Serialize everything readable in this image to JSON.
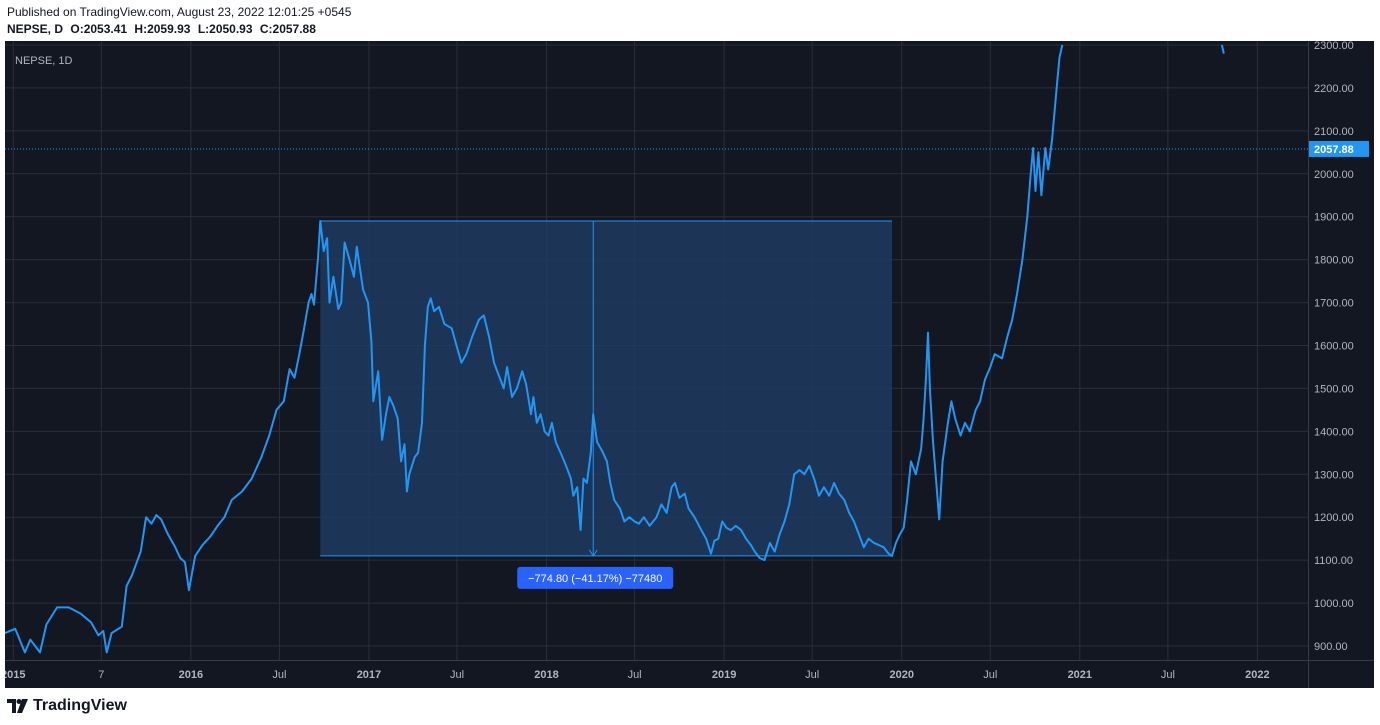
{
  "header": {
    "published": "Published on TradingView.com, August 23, 2022 12:01:25 +0545",
    "symbol": "NEPSE, D",
    "open": "O:2053.41",
    "high": "H:2059.93",
    "low": "L:2050.93",
    "close": "C:2057.88"
  },
  "footer": {
    "brand": "TradingView"
  },
  "colors": {
    "background": "#131722",
    "line": "#2196f3",
    "measure_fill": "#1e3a5f",
    "label_bg": "#2962ff"
  },
  "chart_data": {
    "type": "line",
    "legend": "NEPSE, 1D",
    "y_range": [
      880,
      2300
    ],
    "y_ticks": [
      900,
      1000,
      1100,
      1200,
      1300,
      1400,
      1500,
      1600,
      1700,
      1800,
      1900,
      2000,
      2100,
      2200,
      2300
    ],
    "y_tick_labels": [
      "900.00",
      "1000.00",
      "1100.00",
      "1200.00",
      "1300.00",
      "1400.00",
      "1500.00",
      "1600.00",
      "1700.00",
      "1800.00",
      "1900.00",
      "2000.00",
      "2100.00",
      "2200.00",
      "2300.00"
    ],
    "x_range": [
      "2014-12-15",
      "2022-04-15"
    ],
    "x_ticks": [
      {
        "date": "2015-01-01",
        "label": "2015"
      },
      {
        "date": "2015-07-01",
        "label": "7"
      },
      {
        "date": "2016-01-01",
        "label": "2016"
      },
      {
        "date": "2016-07-01",
        "label": "Jul"
      },
      {
        "date": "2017-01-01",
        "label": "2017"
      },
      {
        "date": "2017-07-01",
        "label": "Jul"
      },
      {
        "date": "2018-01-01",
        "label": "2018"
      },
      {
        "date": "2018-07-01",
        "label": "Jul"
      },
      {
        "date": "2019-01-01",
        "label": "2019"
      },
      {
        "date": "2019-07-01",
        "label": "Jul"
      },
      {
        "date": "2020-01-01",
        "label": "2020"
      },
      {
        "date": "2020-07-01",
        "label": "Jul"
      },
      {
        "date": "2021-01-01",
        "label": "2021"
      },
      {
        "date": "2021-07-01",
        "label": "Jul"
      },
      {
        "date": "2022-01-01",
        "label": "2022"
      }
    ],
    "last_price": 2057.88,
    "last_price_label": "2057.88",
    "series": [
      {
        "points": [
          [
            "2014-12-15",
            930
          ],
          [
            "2015-01-05",
            940
          ],
          [
            "2015-01-25",
            885
          ],
          [
            "2015-02-05",
            915
          ],
          [
            "2015-02-25",
            885
          ],
          [
            "2015-03-10",
            950
          ],
          [
            "2015-04-01",
            990
          ],
          [
            "2015-04-25",
            990
          ],
          [
            "2015-05-20",
            975
          ],
          [
            "2015-06-10",
            955
          ],
          [
            "2015-06-25",
            925
          ],
          [
            "2015-07-05",
            935
          ],
          [
            "2015-07-12",
            885
          ],
          [
            "2015-07-22",
            930
          ],
          [
            "2015-08-12",
            945
          ],
          [
            "2015-08-22",
            1040
          ],
          [
            "2015-09-02",
            1065
          ],
          [
            "2015-09-20",
            1120
          ],
          [
            "2015-10-01",
            1200
          ],
          [
            "2015-10-12",
            1185
          ],
          [
            "2015-10-22",
            1205
          ],
          [
            "2015-11-01",
            1195
          ],
          [
            "2015-11-15",
            1160
          ],
          [
            "2015-11-30",
            1130
          ],
          [
            "2015-12-10",
            1105
          ],
          [
            "2015-12-20",
            1095
          ],
          [
            "2015-12-28",
            1030
          ],
          [
            "2016-01-10",
            1110
          ],
          [
            "2016-01-25",
            1135
          ],
          [
            "2016-02-10",
            1155
          ],
          [
            "2016-02-25",
            1180
          ],
          [
            "2016-03-10",
            1200
          ],
          [
            "2016-03-25",
            1240
          ],
          [
            "2016-04-15",
            1260
          ],
          [
            "2016-05-05",
            1290
          ],
          [
            "2016-05-25",
            1340
          ],
          [
            "2016-06-10",
            1390
          ],
          [
            "2016-06-25",
            1450
          ],
          [
            "2016-07-10",
            1470
          ],
          [
            "2016-07-22",
            1545
          ],
          [
            "2016-08-01",
            1525
          ],
          [
            "2016-08-10",
            1575
          ],
          [
            "2016-08-20",
            1635
          ],
          [
            "2016-08-30",
            1700
          ],
          [
            "2016-09-05",
            1720
          ],
          [
            "2016-09-10",
            1695
          ],
          [
            "2016-09-18",
            1800
          ],
          [
            "2016-09-23",
            1890
          ],
          [
            "2016-09-30",
            1820
          ],
          [
            "2016-10-07",
            1850
          ],
          [
            "2016-10-12",
            1700
          ],
          [
            "2016-10-20",
            1760
          ],
          [
            "2016-10-30",
            1685
          ],
          [
            "2016-11-05",
            1700
          ],
          [
            "2016-11-12",
            1840
          ],
          [
            "2016-11-22",
            1800
          ],
          [
            "2016-12-01",
            1760
          ],
          [
            "2016-12-07",
            1830
          ],
          [
            "2016-12-20",
            1730
          ],
          [
            "2016-12-30",
            1700
          ],
          [
            "2017-01-06",
            1610
          ],
          [
            "2017-01-10",
            1470
          ],
          [
            "2017-01-20",
            1540
          ],
          [
            "2017-01-28",
            1380
          ],
          [
            "2017-02-05",
            1440
          ],
          [
            "2017-02-12",
            1480
          ],
          [
            "2017-02-20",
            1460
          ],
          [
            "2017-03-01",
            1430
          ],
          [
            "2017-03-08",
            1330
          ],
          [
            "2017-03-15",
            1370
          ],
          [
            "2017-03-20",
            1260
          ],
          [
            "2017-03-25",
            1300
          ],
          [
            "2017-04-05",
            1340
          ],
          [
            "2017-04-12",
            1350
          ],
          [
            "2017-04-20",
            1420
          ],
          [
            "2017-04-26",
            1600
          ],
          [
            "2017-05-02",
            1690
          ],
          [
            "2017-05-08",
            1710
          ],
          [
            "2017-05-15",
            1680
          ],
          [
            "2017-05-25",
            1690
          ],
          [
            "2017-06-05",
            1650
          ],
          [
            "2017-06-20",
            1640
          ],
          [
            "2017-06-30",
            1600
          ],
          [
            "2017-07-10",
            1560
          ],
          [
            "2017-07-20",
            1580
          ],
          [
            "2017-08-01",
            1620
          ],
          [
            "2017-08-15",
            1660
          ],
          [
            "2017-08-25",
            1670
          ],
          [
            "2017-09-05",
            1620
          ],
          [
            "2017-09-15",
            1560
          ],
          [
            "2017-09-25",
            1530
          ],
          [
            "2017-10-05",
            1500
          ],
          [
            "2017-10-12",
            1550
          ],
          [
            "2017-10-22",
            1480
          ],
          [
            "2017-11-01",
            1500
          ],
          [
            "2017-11-12",
            1540
          ],
          [
            "2017-11-20",
            1510
          ],
          [
            "2017-11-30",
            1440
          ],
          [
            "2017-12-05",
            1480
          ],
          [
            "2017-12-12",
            1420
          ],
          [
            "2017-12-20",
            1440
          ],
          [
            "2017-12-28",
            1400
          ],
          [
            "2018-01-05",
            1390
          ],
          [
            "2018-01-12",
            1420
          ],
          [
            "2018-01-20",
            1375
          ],
          [
            "2018-02-01",
            1345
          ],
          [
            "2018-02-10",
            1320
          ],
          [
            "2018-02-20",
            1290
          ],
          [
            "2018-02-25",
            1250
          ],
          [
            "2018-03-05",
            1270
          ],
          [
            "2018-03-12",
            1170
          ],
          [
            "2018-03-18",
            1290
          ],
          [
            "2018-03-25",
            1280
          ],
          [
            "2018-04-02",
            1350
          ],
          [
            "2018-04-07",
            1440
          ],
          [
            "2018-04-15",
            1375
          ],
          [
            "2018-04-25",
            1355
          ],
          [
            "2018-05-05",
            1330
          ],
          [
            "2018-05-12",
            1280
          ],
          [
            "2018-05-20",
            1240
          ],
          [
            "2018-06-01",
            1220
          ],
          [
            "2018-06-10",
            1190
          ],
          [
            "2018-06-20",
            1200
          ],
          [
            "2018-07-01",
            1190
          ],
          [
            "2018-07-10",
            1185
          ],
          [
            "2018-07-20",
            1200
          ],
          [
            "2018-08-01",
            1180
          ],
          [
            "2018-08-15",
            1200
          ],
          [
            "2018-08-25",
            1230
          ],
          [
            "2018-09-05",
            1210
          ],
          [
            "2018-09-15",
            1270
          ],
          [
            "2018-09-22",
            1280
          ],
          [
            "2018-10-01",
            1245
          ],
          [
            "2018-10-12",
            1255
          ],
          [
            "2018-10-20",
            1220
          ],
          [
            "2018-11-01",
            1200
          ],
          [
            "2018-11-15",
            1170
          ],
          [
            "2018-11-25",
            1150
          ],
          [
            "2018-12-05",
            1115
          ],
          [
            "2018-12-12",
            1145
          ],
          [
            "2018-12-20",
            1150
          ],
          [
            "2018-12-28",
            1190
          ],
          [
            "2019-01-06",
            1175
          ],
          [
            "2019-01-15",
            1170
          ],
          [
            "2019-01-25",
            1180
          ],
          [
            "2019-02-05",
            1170
          ],
          [
            "2019-02-15",
            1150
          ],
          [
            "2019-02-25",
            1135
          ],
          [
            "2019-03-05",
            1120
          ],
          [
            "2019-03-15",
            1105
          ],
          [
            "2019-03-25",
            1100
          ],
          [
            "2019-04-05",
            1140
          ],
          [
            "2019-04-15",
            1120
          ],
          [
            "2019-04-25",
            1160
          ],
          [
            "2019-05-05",
            1190
          ],
          [
            "2019-05-15",
            1230
          ],
          [
            "2019-05-25",
            1300
          ],
          [
            "2019-06-05",
            1310
          ],
          [
            "2019-06-15",
            1300
          ],
          [
            "2019-06-25",
            1320
          ],
          [
            "2019-07-05",
            1290
          ],
          [
            "2019-07-15",
            1250
          ],
          [
            "2019-07-25",
            1270
          ],
          [
            "2019-08-05",
            1250
          ],
          [
            "2019-08-15",
            1280
          ],
          [
            "2019-08-25",
            1255
          ],
          [
            "2019-09-05",
            1240
          ],
          [
            "2019-09-15",
            1210
          ],
          [
            "2019-09-25",
            1190
          ],
          [
            "2019-10-05",
            1160
          ],
          [
            "2019-10-15",
            1130
          ],
          [
            "2019-10-25",
            1150
          ],
          [
            "2019-11-05",
            1140
          ],
          [
            "2019-11-15",
            1135
          ],
          [
            "2019-11-25",
            1130
          ],
          [
            "2019-12-05",
            1115
          ],
          [
            "2019-12-12",
            1110
          ],
          [
            "2019-12-20",
            1140
          ],
          [
            "2019-12-28",
            1160
          ],
          [
            "2020-01-05",
            1175
          ],
          [
            "2020-01-12",
            1240
          ],
          [
            "2020-01-20",
            1330
          ],
          [
            "2020-01-30",
            1300
          ],
          [
            "2020-02-10",
            1360
          ],
          [
            "2020-02-15",
            1430
          ],
          [
            "2020-02-20",
            1530
          ],
          [
            "2020-02-24",
            1630
          ],
          [
            "2020-02-28",
            1500
          ],
          [
            "2020-03-05",
            1380
          ],
          [
            "2020-03-12",
            1280
          ],
          [
            "2020-03-18",
            1195
          ],
          [
            "2020-03-25",
            1330
          ],
          [
            "2020-04-05",
            1420
          ],
          [
            "2020-04-12",
            1470
          ],
          [
            "2020-04-20",
            1430
          ],
          [
            "2020-05-01",
            1390
          ],
          [
            "2020-05-10",
            1420
          ],
          [
            "2020-05-20",
            1400
          ],
          [
            "2020-06-01",
            1450
          ],
          [
            "2020-06-10",
            1470
          ],
          [
            "2020-06-20",
            1520
          ],
          [
            "2020-07-01",
            1550
          ],
          [
            "2020-07-10",
            1580
          ],
          [
            "2020-07-25",
            1570
          ],
          [
            "2020-08-05",
            1620
          ],
          [
            "2020-08-15",
            1660
          ],
          [
            "2020-08-25",
            1720
          ],
          [
            "2020-09-05",
            1800
          ],
          [
            "2020-09-15",
            1900
          ],
          [
            "2020-09-22",
            2000
          ],
          [
            "2020-09-27",
            2060
          ],
          [
            "2020-10-02",
            1960
          ],
          [
            "2020-10-08",
            2050
          ],
          [
            "2020-10-14",
            1950
          ],
          [
            "2020-10-22",
            2060
          ],
          [
            "2020-10-28",
            2010
          ],
          [
            "2020-11-05",
            2080
          ],
          [
            "2020-11-12",
            2170
          ],
          [
            "2020-11-20",
            2270
          ],
          [
            "2020-11-26",
            2300
          ]
        ]
      }
    ],
    "overlay_series": [
      {
        "points": [
          [
            "2021-10-20",
            2300
          ],
          [
            "2021-10-24",
            2280
          ]
        ]
      }
    ],
    "measure": {
      "x_start": "2016-09-23",
      "x_end": "2019-12-12",
      "y_top": 1890,
      "y_bottom": 1110,
      "arrow_x": "2018-04-07",
      "label": "−774.80 (−41.17%) −77480"
    }
  }
}
